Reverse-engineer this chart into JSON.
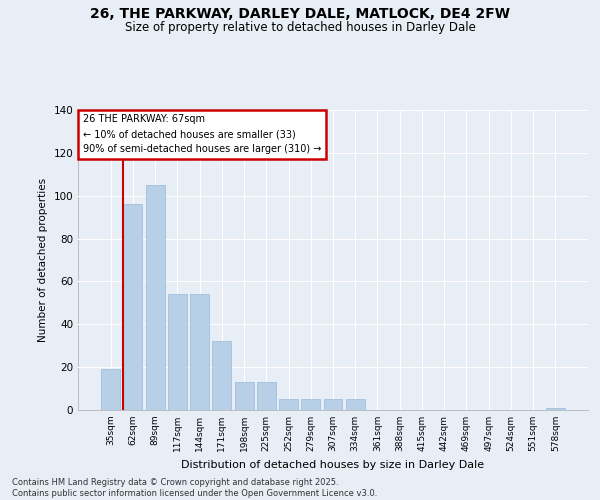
{
  "title_line1": "26, THE PARKWAY, DARLEY DALE, MATLOCK, DE4 2FW",
  "title_line2": "Size of property relative to detached houses in Darley Dale",
  "xlabel": "Distribution of detached houses by size in Darley Dale",
  "ylabel": "Number of detached properties",
  "bar_color": "#b8cfe8",
  "bar_edge_color": "#9ab8d8",
  "bins": [
    "35sqm",
    "62sqm",
    "89sqm",
    "117sqm",
    "144sqm",
    "171sqm",
    "198sqm",
    "225sqm",
    "252sqm",
    "279sqm",
    "307sqm",
    "334sqm",
    "361sqm",
    "388sqm",
    "415sqm",
    "442sqm",
    "469sqm",
    "497sqm",
    "524sqm",
    "551sqm",
    "578sqm"
  ],
  "values": [
    19,
    96,
    105,
    54,
    54,
    32,
    13,
    13,
    5,
    5,
    5,
    5,
    0,
    0,
    0,
    0,
    0,
    0,
    0,
    0,
    1
  ],
  "vline_color": "#cc0000",
  "annotation_title": "26 THE PARKWAY: 67sqm",
  "annotation_line1": "← 10% of detached houses are smaller (33)",
  "annotation_line2": "90% of semi-detached houses are larger (310) →",
  "annotation_box_color": "#cc0000",
  "background_color": "#e8eef6",
  "plot_bg_color": "#e8eef6",
  "ylim": [
    0,
    140
  ],
  "yticks": [
    0,
    20,
    40,
    60,
    80,
    100,
    120,
    140
  ],
  "footer_line1": "Contains HM Land Registry data © Crown copyright and database right 2025.",
  "footer_line2": "Contains public sector information licensed under the Open Government Licence v3.0."
}
